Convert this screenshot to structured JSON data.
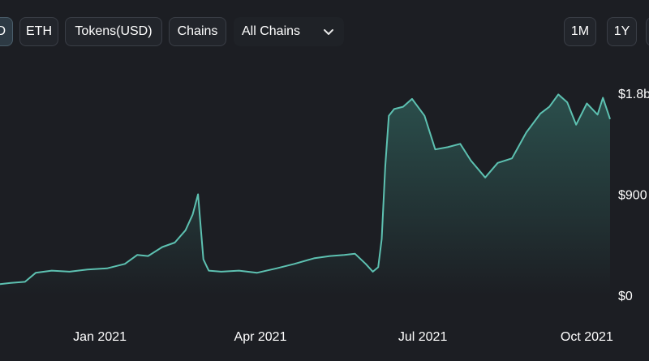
{
  "toolbar": {
    "buttons": [
      {
        "label": "D",
        "active": true
      },
      {
        "label": "ETH",
        "active": false
      },
      {
        "label": "Tokens(USD)",
        "active": false
      },
      {
        "label": "Chains",
        "active": false
      }
    ],
    "chain_select": {
      "value": "All Chains",
      "icon": "chevron-down-icon"
    },
    "range_buttons": [
      {
        "label": "1M"
      },
      {
        "label": "1Y"
      }
    ]
  },
  "colors": {
    "background": "#1c1e23",
    "line": "#5dc1b1",
    "fill": "#3d8b7f"
  },
  "chart_data": {
    "type": "area",
    "x_ticks": [
      "Jan 2021",
      "Apr 2021",
      "Jul 2021",
      "Oct 2021"
    ],
    "y_ticks": [
      "$0",
      "$900",
      "$1.8b"
    ],
    "ylim": [
      0,
      1.8
    ],
    "y_unit": "billion USD",
    "x_range": [
      "2020-11-06",
      "2021-10-14"
    ],
    "points": [
      [
        "2020-11-06",
        0.1
      ],
      [
        "2020-11-12",
        0.11
      ],
      [
        "2020-11-20",
        0.12
      ],
      [
        "2020-11-26",
        0.2
      ],
      [
        "2020-12-05",
        0.22
      ],
      [
        "2020-12-15",
        0.21
      ],
      [
        "2020-12-25",
        0.23
      ],
      [
        "2021-01-05",
        0.24
      ],
      [
        "2021-01-15",
        0.28
      ],
      [
        "2021-01-22",
        0.36
      ],
      [
        "2021-01-28",
        0.35
      ],
      [
        "2021-02-05",
        0.43
      ],
      [
        "2021-02-12",
        0.47
      ],
      [
        "2021-02-18",
        0.58
      ],
      [
        "2021-02-22",
        0.72
      ],
      [
        "2021-02-25",
        0.9
      ],
      [
        "2021-02-28",
        0.32
      ],
      [
        "2021-03-03",
        0.22
      ],
      [
        "2021-03-10",
        0.21
      ],
      [
        "2021-03-20",
        0.22
      ],
      [
        "2021-03-30",
        0.2
      ],
      [
        "2021-04-10",
        0.24
      ],
      [
        "2021-04-20",
        0.28
      ],
      [
        "2021-05-01",
        0.33
      ],
      [
        "2021-05-10",
        0.35
      ],
      [
        "2021-05-18",
        0.36
      ],
      [
        "2021-05-24",
        0.37
      ],
      [
        "2021-05-30",
        0.28
      ],
      [
        "2021-06-03",
        0.21
      ],
      [
        "2021-06-06",
        0.25
      ],
      [
        "2021-06-08",
        0.5
      ],
      [
        "2021-06-10",
        1.15
      ],
      [
        "2021-06-12",
        1.6
      ],
      [
        "2021-06-15",
        1.66
      ],
      [
        "2021-06-20",
        1.68
      ],
      [
        "2021-06-25",
        1.75
      ],
      [
        "2021-07-02",
        1.6
      ],
      [
        "2021-07-08",
        1.3
      ],
      [
        "2021-07-15",
        1.32
      ],
      [
        "2021-07-22",
        1.35
      ],
      [
        "2021-07-28",
        1.2
      ],
      [
        "2021-08-05",
        1.05
      ],
      [
        "2021-08-12",
        1.18
      ],
      [
        "2021-08-20",
        1.22
      ],
      [
        "2021-08-28",
        1.45
      ],
      [
        "2021-09-05",
        1.62
      ],
      [
        "2021-09-10",
        1.68
      ],
      [
        "2021-09-15",
        1.79
      ],
      [
        "2021-09-20",
        1.72
      ],
      [
        "2021-09-25",
        1.52
      ],
      [
        "2021-10-01",
        1.71
      ],
      [
        "2021-10-07",
        1.61
      ],
      [
        "2021-10-10",
        1.76
      ],
      [
        "2021-10-14",
        1.57
      ]
    ],
    "grid": false
  }
}
